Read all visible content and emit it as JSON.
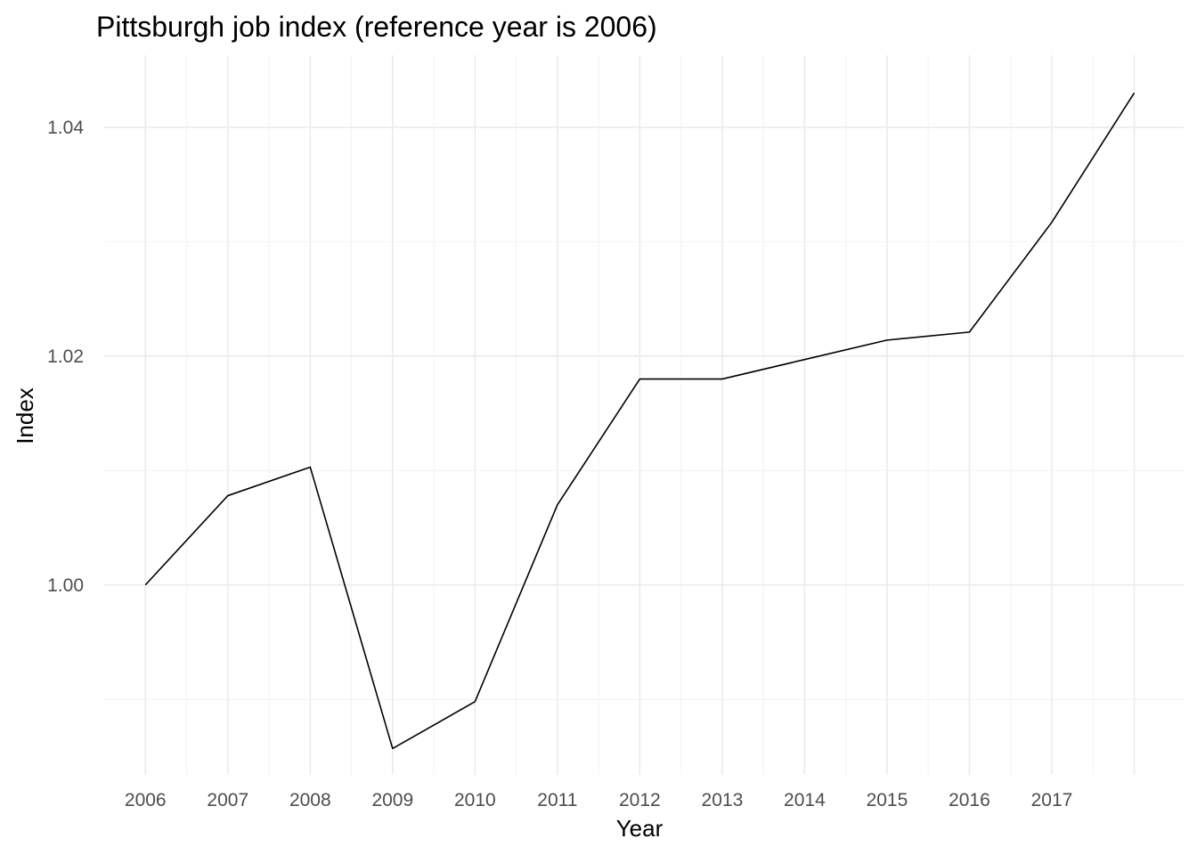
{
  "chart_data": {
    "type": "line",
    "title": "Pittsburgh job index (reference year is 2006)",
    "xlabel": "Year",
    "ylabel": "Index",
    "x_tick_labels": [
      "2006",
      "2007",
      "2008",
      "2009",
      "2010",
      "2011",
      "2012",
      "2013",
      "2014",
      "2015",
      "2016",
      "2017"
    ],
    "y_tick_labels": [
      "1.00",
      "1.02",
      "1.04"
    ],
    "y_ticks": [
      1.0,
      1.02,
      1.04
    ],
    "y_minor_ticks": [
      0.99,
      1.01,
      1.03
    ],
    "x_minor_ticks": [
      2006.5,
      2007.5,
      2008.5,
      2009.5,
      2010.5,
      2011.5,
      2012.5,
      2013.5,
      2014.5,
      2015.5,
      2016.5,
      2017.5
    ],
    "xlim": [
      2005.5,
      2018.6
    ],
    "ylim": [
      0.9834,
      1.0463
    ],
    "grid": true,
    "series": [
      {
        "color": "#000000",
        "x": [
          2006,
          2007,
          2008,
          2009,
          2010,
          2011,
          2012,
          2013,
          2014,
          2015,
          2016,
          2017,
          2018
        ],
        "values": [
          1.0,
          1.0078,
          1.0103,
          0.9857,
          0.9898,
          1.007,
          1.018,
          1.018,
          1.0197,
          1.0214,
          1.0221,
          1.0317,
          1.043
        ]
      }
    ]
  }
}
